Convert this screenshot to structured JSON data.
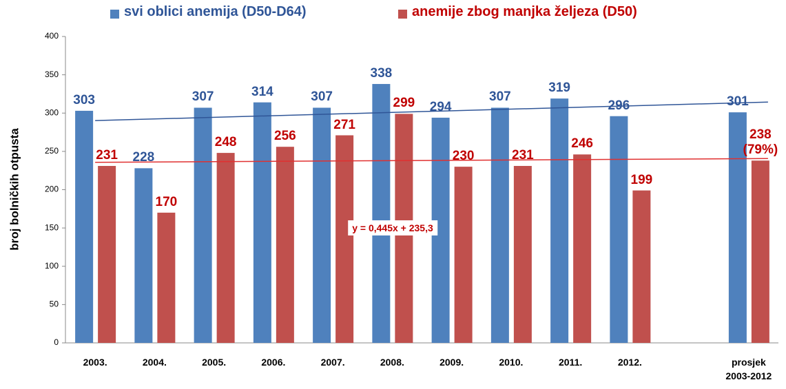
{
  "chart_data": {
    "type": "bar",
    "y_label": "broj bolničkih otpusta",
    "categories": [
      "2003.",
      "2004.",
      "2005.",
      "2006.",
      "2007.",
      "2008.",
      "2009.",
      "2010.",
      "2011.",
      "2012.",
      null,
      "prosjek 2003-2012"
    ],
    "series": [
      {
        "name": "svi oblici anemija (D50-D64)",
        "color": "#4f81bd",
        "label_color": "#2f5597",
        "values": [
          303,
          228,
          307,
          314,
          307,
          338,
          294,
          307,
          319,
          296,
          null,
          301
        ]
      },
      {
        "name": "anemije zbog manjka željeza (D50)",
        "color": "#c0504d",
        "label_color": "#c00000",
        "values": [
          231,
          170,
          248,
          256,
          271,
          299,
          230,
          231,
          246,
          199,
          null,
          238
        ],
        "value_labels": [
          "231",
          "170",
          "248",
          "256",
          "271",
          "299",
          "230",
          "231",
          "246",
          "199",
          null,
          "238 (79%)"
        ]
      }
    ],
    "trendlines": [
      {
        "color": "#2f5597",
        "slope": 2.2,
        "intercept": 288
      },
      {
        "color": "#e03030",
        "slope": 0.445,
        "intercept": 235.3,
        "label": "y = 0,445x + 235,3"
      }
    ],
    "ylim": [
      0,
      400
    ],
    "yticks": [
      0,
      50,
      100,
      150,
      200,
      250,
      300,
      350,
      400
    ],
    "grid": false
  }
}
